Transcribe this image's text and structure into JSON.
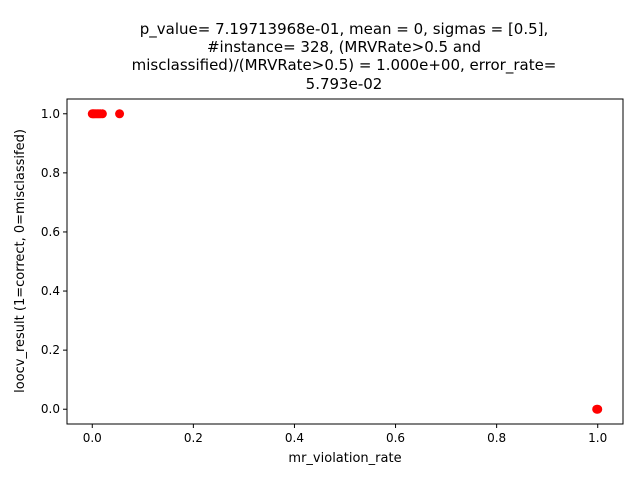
{
  "chart_data": {
    "type": "scatter",
    "title_lines": [
      "p_value= 7.19713968e-01, mean = 0, sigmas = [0.5],",
      "#instance= 328, (MRVRate>0.5 and",
      "misclassified)/(MRVRate>0.5) = 1.000e+00, error_rate=",
      "5.793e-02"
    ],
    "xlabel": "mr_violation_rate",
    "ylabel": "loocv_result (1=correct, 0=misclassifed)",
    "xlim": [
      -0.05,
      1.05
    ],
    "ylim": [
      -0.05,
      1.05
    ],
    "x_ticks": [
      "0.0",
      "0.2",
      "0.4",
      "0.6",
      "0.8",
      "1.0"
    ],
    "y_ticks": [
      "0.0",
      "0.2",
      "0.4",
      "0.6",
      "0.8",
      "1.0"
    ],
    "grid": false,
    "marker_color": "#ff0000",
    "points": [
      {
        "x": 0.0,
        "y": 1.0
      },
      {
        "x": 0.002,
        "y": 1.0
      },
      {
        "x": 0.004,
        "y": 1.0
      },
      {
        "x": 0.007,
        "y": 1.0
      },
      {
        "x": 0.01,
        "y": 1.0
      },
      {
        "x": 0.013,
        "y": 1.0
      },
      {
        "x": 0.016,
        "y": 1.0
      },
      {
        "x": 0.02,
        "y": 1.0
      },
      {
        "x": 0.054,
        "y": 1.0
      },
      {
        "x": 1.0,
        "y": 0.0
      },
      {
        "x": 0.998,
        "y": 0.0
      }
    ]
  }
}
